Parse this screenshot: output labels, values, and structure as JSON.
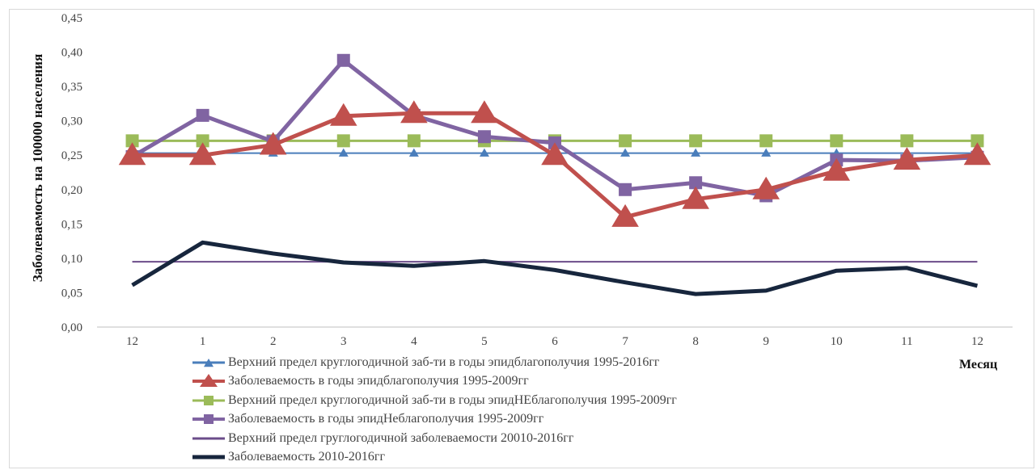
{
  "chart_data": {
    "type": "line",
    "xlabel": "Месяц",
    "ylabel": "Заболеваемость на 100000 населения",
    "categories": [
      "12",
      "1",
      "2",
      "3",
      "4",
      "5",
      "6",
      "7",
      "8",
      "9",
      "10",
      "11",
      "12"
    ],
    "ylim": [
      0,
      0.45
    ],
    "yticks": [
      "0,00",
      "0,05",
      "0,10",
      "0,15",
      "0,20",
      "0,25",
      "0,30",
      "0,35",
      "0,40",
      "0,45"
    ],
    "grid": false,
    "legend_position": "bottom",
    "series": [
      {
        "name": "Верхний предел круглогодичной заб-ти в годы эпидблагополучия 1995-2016гг",
        "color": "#4a7ebb",
        "marker": "triangle-small",
        "values": [
          0.253,
          0.253,
          0.253,
          0.253,
          0.253,
          0.253,
          0.253,
          0.253,
          0.253,
          0.253,
          0.253,
          0.253,
          0.253
        ]
      },
      {
        "name": "Заболеваемость в годы эпидблагополучия 1995-2009гг",
        "color": "#c0504d",
        "marker": "triangle-large",
        "values": [
          0.25,
          0.25,
          0.265,
          0.307,
          0.311,
          0.311,
          0.25,
          0.16,
          0.186,
          0.2,
          0.227,
          0.243,
          0.25
        ]
      },
      {
        "name": "Верхний предел круглогодичной заб-ти в годы эпидНЕблагополучия 1995-2009гг",
        "color": "#9bbb59",
        "marker": "square",
        "values": [
          0.271,
          0.271,
          0.271,
          0.271,
          0.271,
          0.271,
          0.271,
          0.271,
          0.271,
          0.271,
          0.271,
          0.271,
          0.271
        ]
      },
      {
        "name": "Заболеваемость в годы эпидНеблагополучия 1995-2009гг",
        "color": "#8064a2",
        "marker": "square",
        "values": [
          0.248,
          0.308,
          0.27,
          0.388,
          0.308,
          0.277,
          0.268,
          0.2,
          0.21,
          0.191,
          0.243,
          0.242,
          0.247
        ]
      },
      {
        "name": "Верхний предел груглогодичной заболеваемости 20010-2016гг",
        "color": "#6b4c8a",
        "marker": "none",
        "values": [
          0.095,
          0.095,
          0.095,
          0.095,
          0.095,
          0.095,
          0.095,
          0.095,
          0.095,
          0.095,
          0.095,
          0.095,
          0.095
        ]
      },
      {
        "name": "Заболеваемость 2010-2016гг",
        "color": "#17263d",
        "marker": "none-thick",
        "values": [
          0.061,
          0.123,
          0.107,
          0.094,
          0.089,
          0.096,
          0.083,
          0.065,
          0.048,
          0.053,
          0.082,
          0.086,
          0.06
        ]
      }
    ]
  }
}
